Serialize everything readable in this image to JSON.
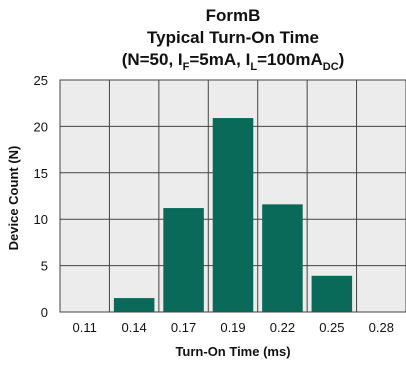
{
  "chart_data": {
    "type": "bar",
    "title_line1": "FormB",
    "title_line2": "Typical Turn-On Time",
    "title_line3_parts": [
      "(N=50, I",
      "F",
      "=5mA, I",
      "L",
      "=100mA",
      "DC",
      ")"
    ],
    "xlabel": "Turn-On Time (ms)",
    "ylabel": "Device Count (N)",
    "categories": [
      "0.11",
      "0.14",
      "0.17",
      "0.19",
      "0.22",
      "0.25",
      "0.28"
    ],
    "values": [
      0,
      1.5,
      11.2,
      20.9,
      11.6,
      3.9,
      0
    ],
    "ylim": [
      0,
      25
    ],
    "yticks": [
      0,
      5,
      10,
      15,
      20,
      25
    ],
    "grid": true,
    "colors": {
      "bar": "#0a6a5a",
      "plot_bg": "#ececec",
      "grid": "#444444"
    }
  }
}
